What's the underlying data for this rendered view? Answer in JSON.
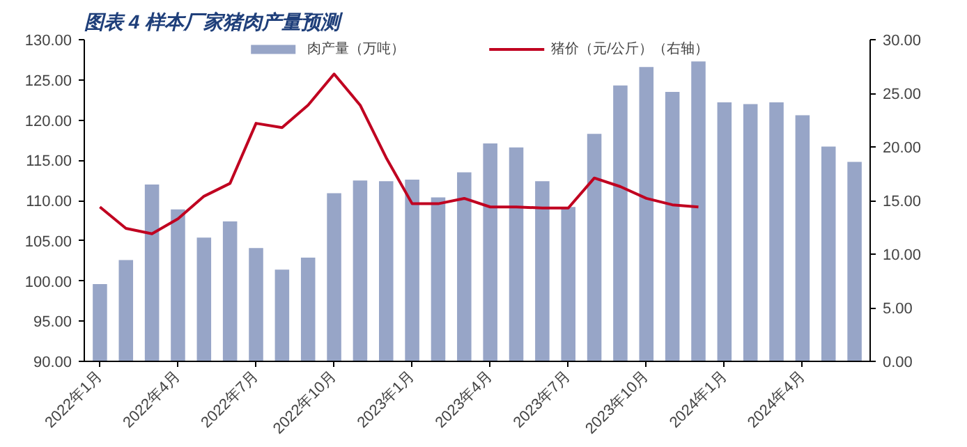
{
  "chart_data": {
    "type": "bar",
    "title": "图表 4  样本厂家猪肉产量预测",
    "categories": [
      "2022年1月",
      null,
      null,
      "2022年4月",
      null,
      null,
      "2022年7月",
      null,
      null,
      "2022年10月",
      null,
      null,
      "2023年1月",
      null,
      null,
      "2023年4月",
      null,
      null,
      "2023年7月",
      null,
      null,
      "2023年10月",
      null,
      null,
      "2024年1月",
      null,
      null,
      "2024年4月",
      null,
      null
    ],
    "series": [
      {
        "name": "肉产量（万吨）",
        "color": "#97a5c7",
        "values": [
          99.6,
          102.6,
          112.0,
          108.9,
          105.4,
          107.4,
          104.1,
          101.4,
          102.9,
          110.9,
          112.5,
          112.4,
          112.6,
          110.4,
          113.5,
          117.1,
          116.6,
          112.4,
          109.2,
          118.3,
          124.3,
          126.6,
          123.5,
          127.3,
          122.2,
          122.0,
          122.2,
          120.6,
          116.7,
          114.8
        ]
      },
      {
        "name": "猪价（元/公斤）（右轴）",
        "type": "line",
        "axis": "y2",
        "color": "#c00020",
        "values": [
          14.4,
          12.4,
          11.9,
          13.3,
          15.4,
          16.6,
          22.2,
          21.8,
          23.9,
          26.8,
          23.9,
          19.0,
          14.7,
          14.7,
          15.2,
          14.4,
          14.4,
          14.3,
          14.3,
          17.1,
          16.3,
          15.2,
          14.6,
          14.4,
          null,
          null,
          null,
          null,
          null,
          null
        ]
      }
    ],
    "ylim": [
      90,
      130
    ],
    "yticks": [
      {
        "value": 90,
        "label": "90.00"
      },
      {
        "value": 95,
        "label": "95.00"
      },
      {
        "value": 100,
        "label": "100.00"
      },
      {
        "value": 105,
        "label": "105.00"
      },
      {
        "value": 110,
        "label": "110.00"
      },
      {
        "value": 115,
        "label": "115.00"
      },
      {
        "value": 120,
        "label": "120.00"
      },
      {
        "value": 125,
        "label": "125.00"
      },
      {
        "value": 130,
        "label": "130.00"
      }
    ],
    "y2lim": [
      0,
      30
    ],
    "y2ticks": [
      {
        "value": 0,
        "label": "0.00"
      },
      {
        "value": 5,
        "label": "5.00"
      },
      {
        "value": 10,
        "label": "10.00"
      },
      {
        "value": 15,
        "label": "15.00"
      },
      {
        "value": 20,
        "label": "20.00"
      },
      {
        "value": 25,
        "label": "25.00"
      },
      {
        "value": 30,
        "label": "30.00"
      }
    ],
    "legend": "top",
    "grid": false
  }
}
